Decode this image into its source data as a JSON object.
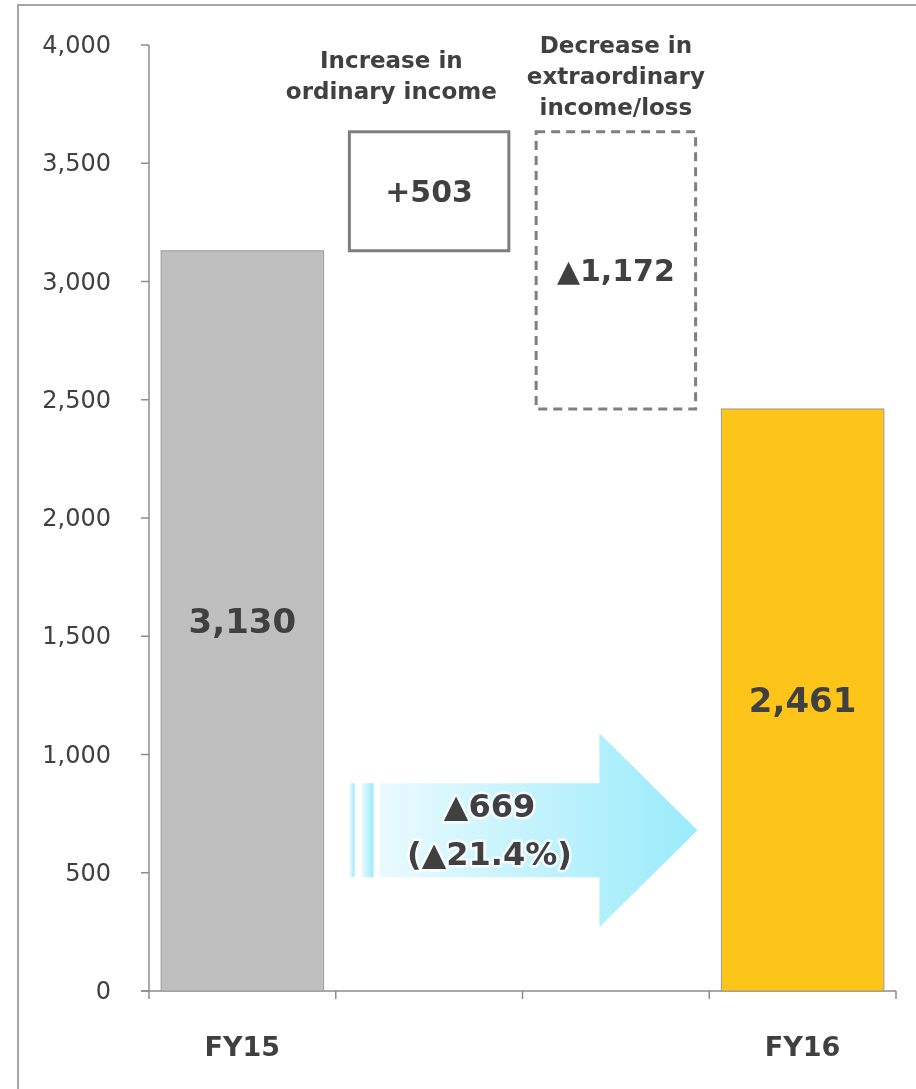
{
  "chart_data": {
    "type": "bar",
    "categories": [
      "FY15",
      "Increase in ordinary income",
      "Decrease in extraordinary income/loss",
      "FY16"
    ],
    "values": [
      3130,
      503,
      -1172,
      2461
    ],
    "base": [
      0,
      3130,
      3633,
      0
    ],
    "colors": [
      "#bfbfbf",
      "#7f7f7f",
      "#7f7f7f",
      "#fdc51a"
    ],
    "value_labels": [
      "3,130",
      "+503",
      "▲1,172",
      "2,461"
    ],
    "ylim": [
      0,
      4000
    ],
    "yticks": [
      {
        "value": 0,
        "label": "0"
      },
      {
        "value": 500,
        "label": "500"
      },
      {
        "value": 1000,
        "label": "1,000"
      },
      {
        "value": 1500,
        "label": "1,500"
      },
      {
        "value": 2000,
        "label": "2,000"
      },
      {
        "value": 2500,
        "label": "2,500"
      },
      {
        "value": 3000,
        "label": "3,000"
      },
      {
        "value": 3500,
        "label": "3,500"
      },
      {
        "value": 4000,
        "label": "4,000"
      }
    ],
    "annotations": [
      "▲669",
      "(▲21.4%)"
    ]
  }
}
